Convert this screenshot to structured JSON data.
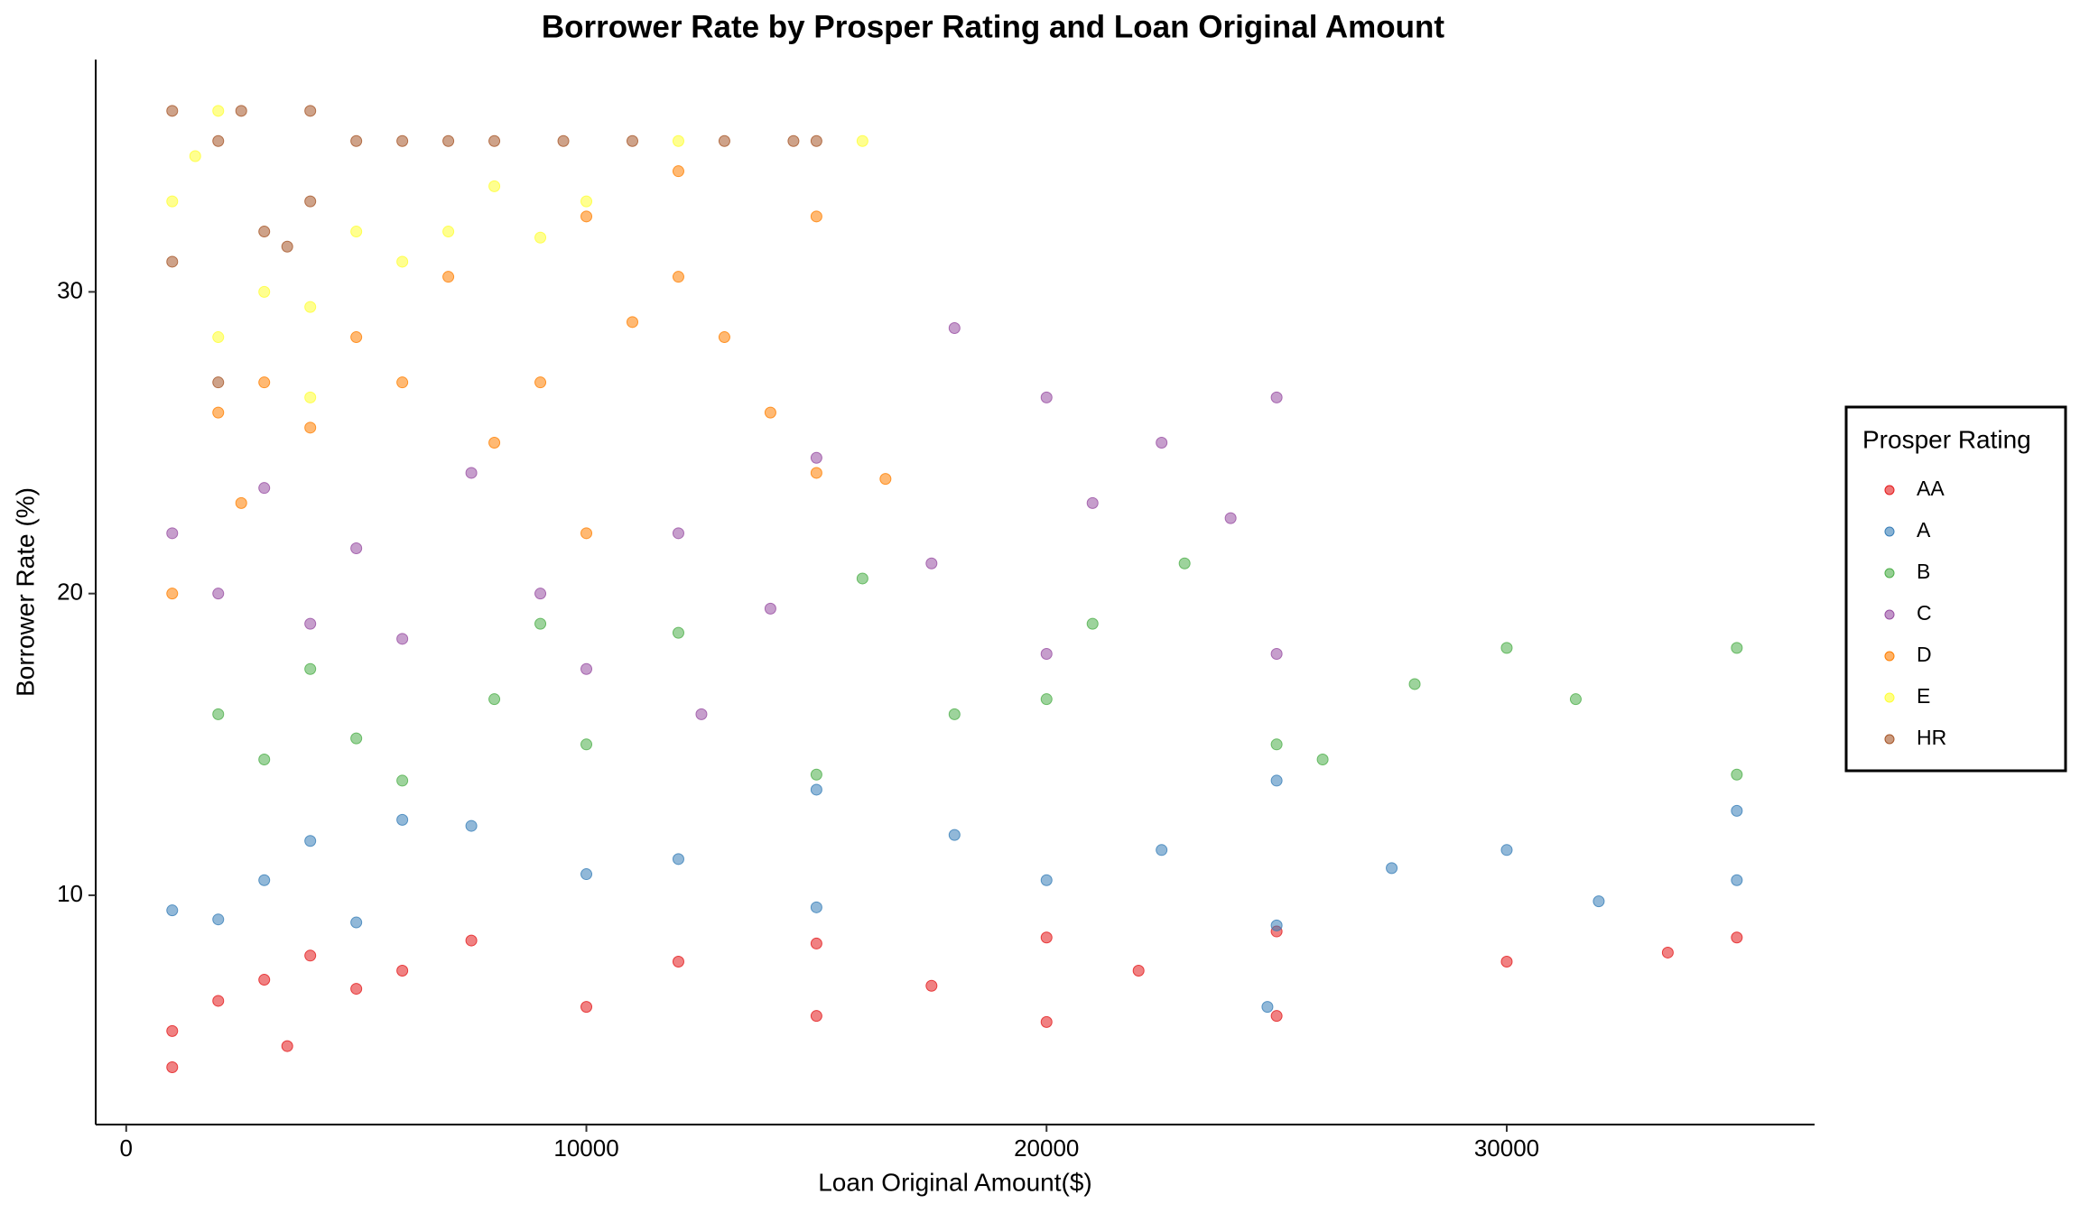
{
  "chart_data": {
    "type": "scatter",
    "title": "Borrower Rate by Prosper Rating and Loan Original Amount",
    "x_label": "Loan Original Amount($)",
    "y_label": "Borrower Rate (%)",
    "xlim": [
      -663,
      36690
    ],
    "ylim": [
      2.4,
      37.7
    ],
    "xticks": [
      0,
      10000,
      20000,
      30000
    ],
    "yticks": [
      10,
      20,
      30
    ],
    "grid": false,
    "legend_title": "Prosper Rating",
    "legend_position": "right",
    "series": [
      {
        "name": "AA",
        "color": "#e41a1c",
        "x": [
          1000,
          2000,
          3000,
          4000,
          5000,
          6000,
          7500,
          10000,
          12000,
          15000,
          15000,
          17500,
          20000,
          20000,
          22000,
          25000,
          25000,
          30000,
          33500,
          35000,
          3500,
          1000
        ],
        "values": [
          5.5,
          6.5,
          7.2,
          8,
          6.9,
          7.5,
          8.5,
          6.3,
          7.8,
          6.0,
          8.4,
          7.0,
          5.8,
          8.6,
          7.5,
          6.0,
          8.8,
          7.8,
          8.1,
          8.6,
          5.0,
          4.3
        ]
      },
      {
        "name": "A",
        "color": "#377eb8",
        "x": [
          1000,
          2000,
          3000,
          4000,
          5000,
          7500,
          10000,
          12000,
          15000,
          15000,
          18000,
          20000,
          22500,
          25000,
          25000,
          27500,
          30000,
          32000,
          35000,
          35000,
          24800,
          6000
        ],
        "values": [
          9.5,
          9.2,
          10.5,
          11.8,
          9.1,
          12.3,
          10.7,
          11.2,
          9.6,
          13.5,
          12.0,
          10.5,
          11.5,
          9.0,
          13.8,
          10.9,
          11.5,
          9.8,
          10.5,
          12.8,
          6.3,
          12.5
        ]
      },
      {
        "name": "B",
        "color": "#4daf4a",
        "x": [
          2000,
          3000,
          4000,
          5000,
          6000,
          8000,
          10000,
          12000,
          15000,
          16000,
          18000,
          20000,
          21000,
          23000,
          25000,
          26000,
          28000,
          30000,
          31500,
          35000,
          35000,
          9000
        ],
        "values": [
          16,
          14.5,
          17.5,
          15.2,
          13.8,
          16.5,
          15,
          18.7,
          14,
          20.5,
          16,
          16.5,
          19,
          21,
          15,
          14.5,
          17,
          18.2,
          16.5,
          18.2,
          14,
          19
        ]
      },
      {
        "name": "C",
        "color": "#984ea3",
        "x": [
          1000,
          2000,
          3000,
          4000,
          5000,
          6000,
          7500,
          9000,
          10000,
          12000,
          14000,
          15000,
          17500,
          18000,
          20000,
          21000,
          22500,
          24000,
          25000,
          25000,
          20000,
          12500
        ],
        "values": [
          22,
          20,
          23.5,
          19,
          21.5,
          18.5,
          24,
          20,
          17.5,
          22,
          19.5,
          24.5,
          21,
          28.8,
          26.5,
          23,
          25,
          22.5,
          26.5,
          18,
          18,
          16
        ]
      },
      {
        "name": "D",
        "color": "#ff7f00",
        "x": [
          1000,
          2000,
          2500,
          3000,
          4000,
          5000,
          6000,
          7000,
          8000,
          10000,
          10000,
          11000,
          12000,
          13000,
          14000,
          15000,
          15000,
          16500,
          12000,
          9000
        ],
        "values": [
          20,
          26,
          23,
          27,
          25.5,
          28.5,
          27,
          30.5,
          25,
          32.5,
          22,
          29,
          34,
          28.5,
          26,
          32.5,
          24,
          23.8,
          30.5,
          27
        ]
      },
      {
        "name": "E",
        "color": "#ffff33",
        "x": [
          1000,
          1500,
          2000,
          3000,
          4000,
          5000,
          6000,
          7000,
          8000,
          9000,
          10000,
          12000,
          16000,
          2000,
          4000
        ],
        "values": [
          33,
          34.5,
          36,
          30,
          29.5,
          32,
          31,
          32,
          33.5,
          31.8,
          33,
          35,
          35,
          28.5,
          26.5
        ]
      },
      {
        "name": "HR",
        "color": "#a65628",
        "x": [
          1000,
          1000,
          2000,
          2500,
          3000,
          3500,
          4000,
          5000,
          6000,
          7000,
          8000,
          9500,
          11000,
          13000,
          14500,
          15000,
          2000,
          4000
        ],
        "values": [
          36,
          31,
          35,
          36,
          32,
          31.5,
          36,
          35,
          35,
          35,
          35,
          35,
          35,
          35,
          35,
          35,
          27,
          33
        ]
      }
    ]
  }
}
